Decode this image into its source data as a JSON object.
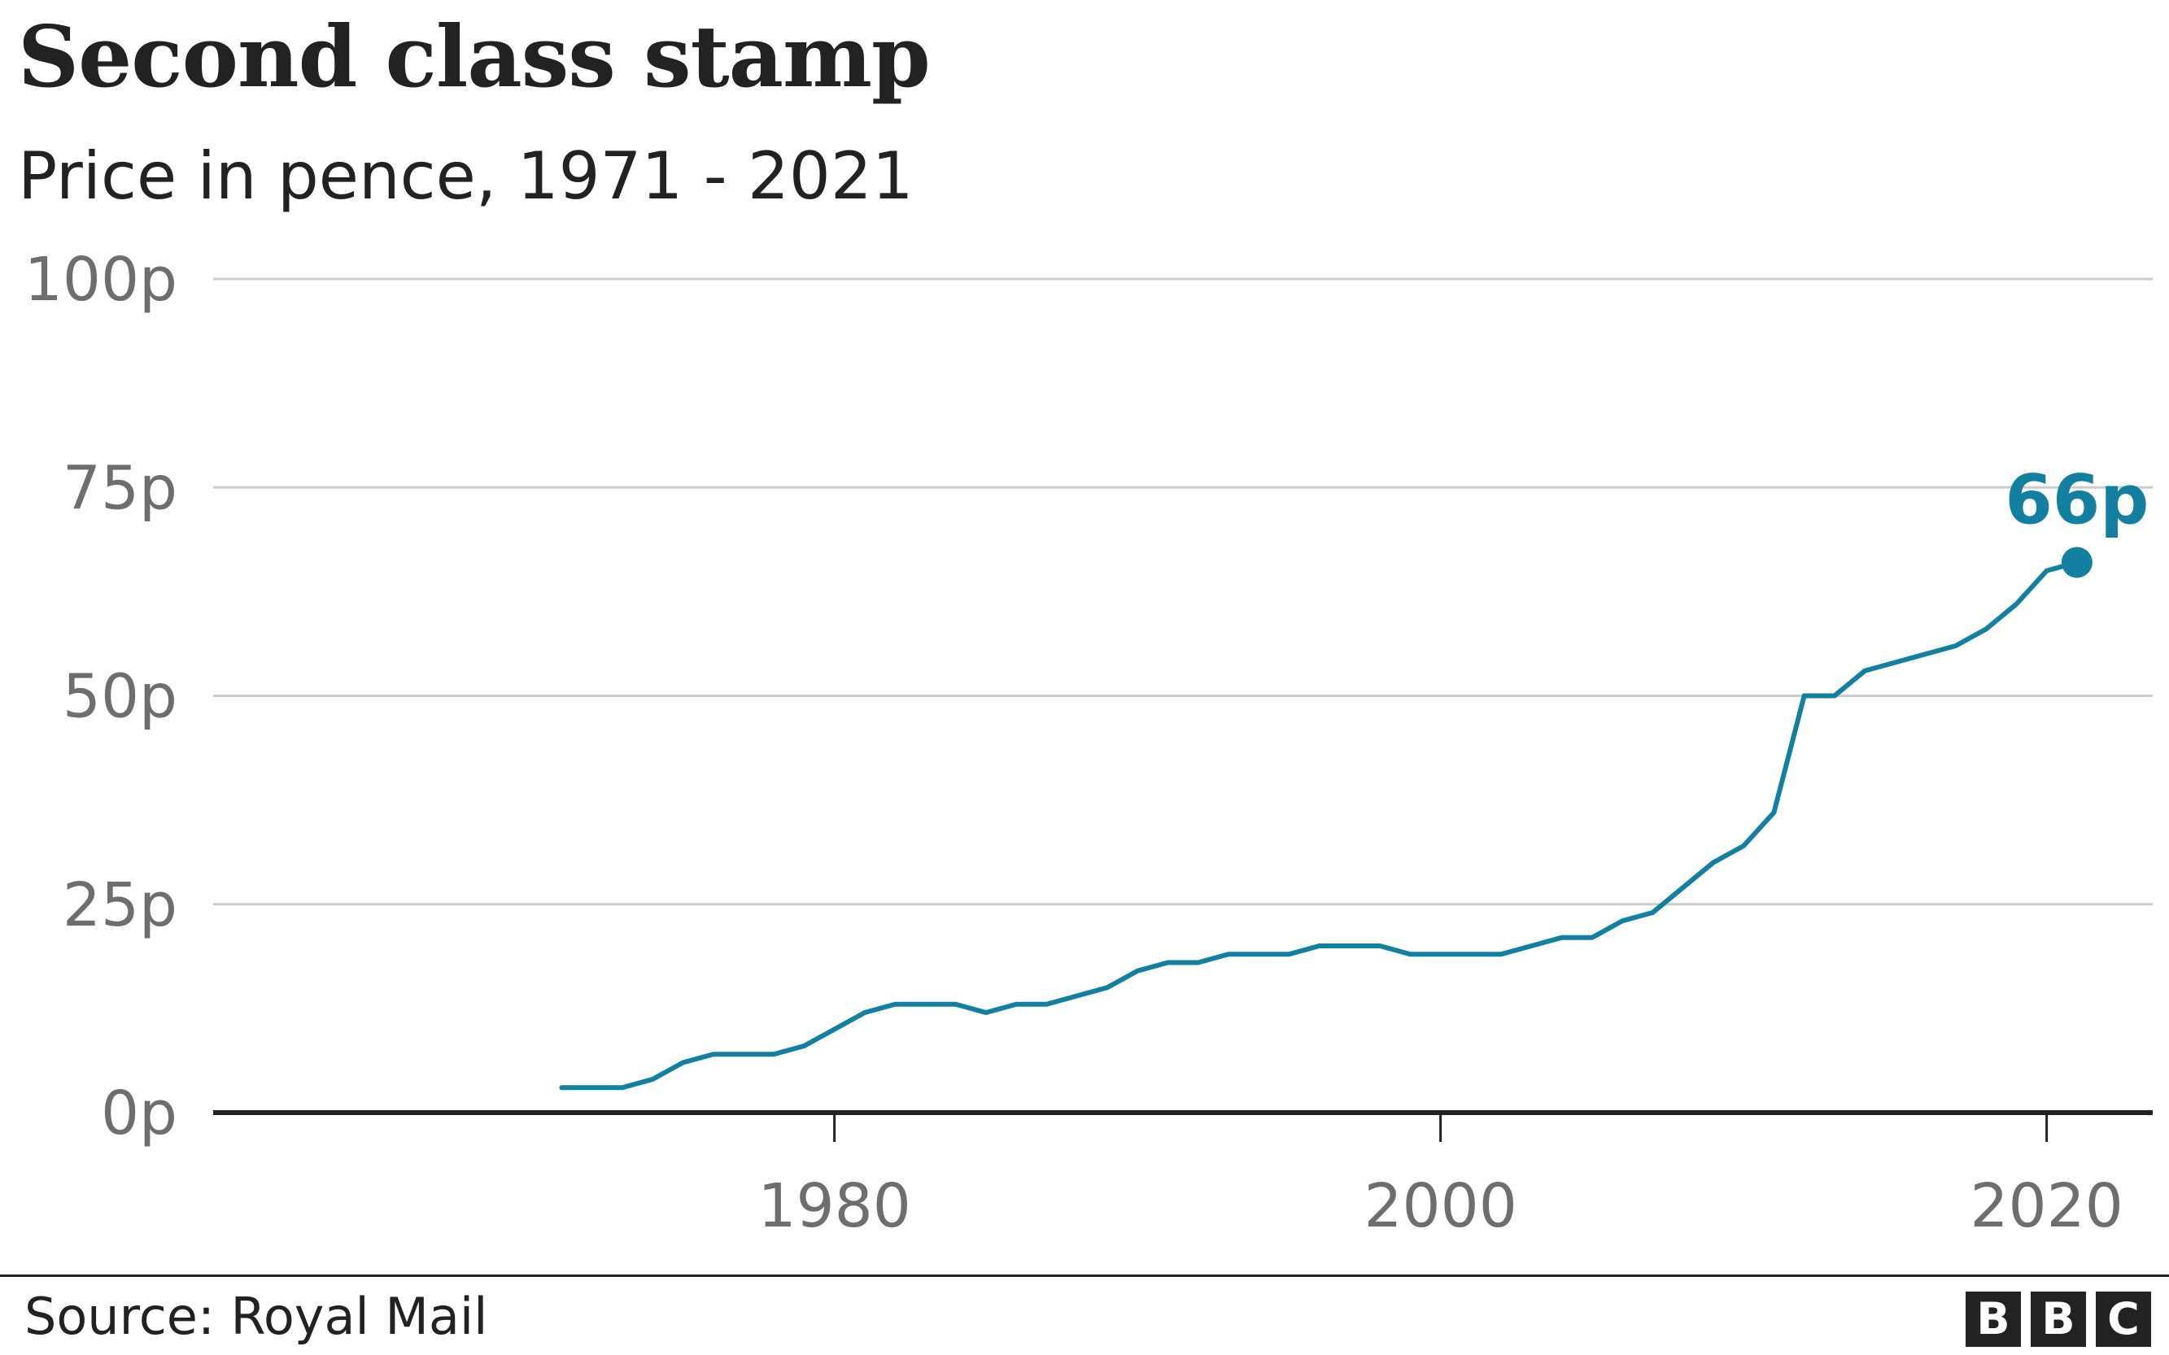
{
  "chart_data": {
    "type": "line",
    "title": "Second class stamp",
    "subtitle": "Price in pence, 1971 - 2021",
    "xlabel": "",
    "ylabel": "",
    "xlim": [
      1959.5,
      2023.5
    ],
    "ylim": [
      0,
      100
    ],
    "x_ticks": [
      1980,
      2000,
      2020
    ],
    "x_tick_labels": [
      "1980",
      "2000",
      "2020"
    ],
    "y_ticks": [
      0,
      25,
      50,
      75,
      100
    ],
    "y_tick_labels": [
      "0p",
      "25p",
      "50p",
      "75p",
      "100p"
    ],
    "grid": "horizontal",
    "legend": "none",
    "line_color": "#1380A1",
    "series": [
      {
        "x": [
          1971,
          1972,
          1973,
          1974,
          1975,
          1976,
          1977,
          1978,
          1979,
          1980,
          1981,
          1982,
          1983,
          1984,
          1985,
          1986,
          1987,
          1988,
          1989,
          1990,
          1991,
          1992,
          1993,
          1994,
          1995,
          1996,
          1997,
          1998,
          1999,
          2000,
          2001,
          2002,
          2003,
          2004,
          2005,
          2006,
          2007,
          2008,
          2009,
          2010,
          2011,
          2012,
          2013,
          2014,
          2015,
          2016,
          2017,
          2018,
          2019,
          2020,
          2021
        ],
        "values": [
          3,
          3,
          3,
          4,
          6,
          7,
          7,
          7,
          8,
          10,
          12,
          13,
          13,
          13,
          12,
          13,
          13,
          14,
          15,
          17,
          18,
          18,
          19,
          19,
          19,
          20,
          20,
          20,
          19,
          19,
          19,
          19,
          20,
          21,
          21,
          23,
          24,
          27,
          30,
          32,
          36,
          50,
          50,
          53,
          54,
          55,
          56,
          58,
          61,
          65,
          66
        ]
      }
    ],
    "annotations": [
      {
        "x": 2021,
        "y": 66,
        "label": "66p"
      }
    ]
  },
  "footer": {
    "source": "Source: Royal Mail",
    "logo_letters": [
      "B",
      "B",
      "C"
    ]
  }
}
